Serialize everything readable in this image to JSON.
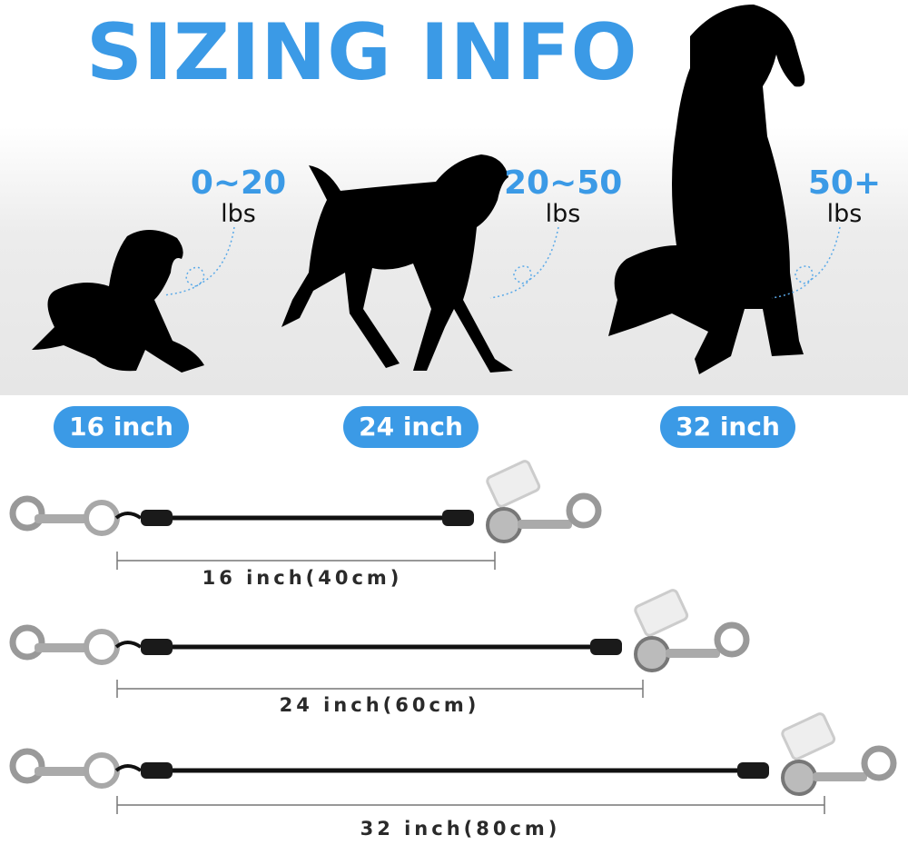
{
  "title": "SIZING INFO",
  "colors": {
    "accent": "#3b9ae6",
    "silhouette": "#000000"
  },
  "dogs": [
    {
      "weight": "0~20",
      "unit": "lbs",
      "size": "16 inch",
      "icon": "small-dog-silhouette"
    },
    {
      "weight": "20~50",
      "unit": "lbs",
      "size": "24 inch",
      "icon": "medium-dog-silhouette"
    },
    {
      "weight": "50+",
      "unit": "lbs",
      "size": "32 inch",
      "icon": "large-dog-silhouette"
    }
  ],
  "leashes": [
    {
      "length_label": "16 inch(40cm)"
    },
    {
      "length_label": "24 inch(60cm)"
    },
    {
      "length_label": "32 inch(80cm)"
    }
  ]
}
